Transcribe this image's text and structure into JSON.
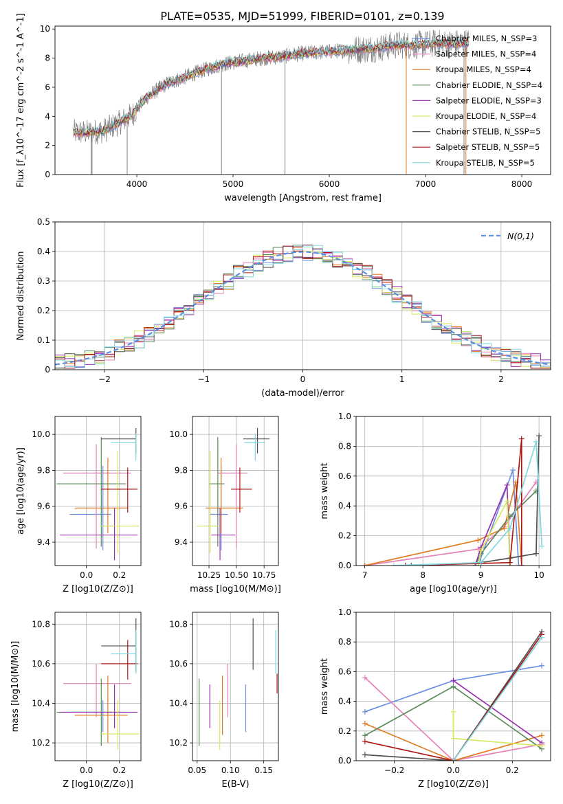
{
  "figure": {
    "title": "PLATE=0535, MJD=51999, FIBERID=0101, z=0.139"
  },
  "colors": {
    "Chabrier MILES": "#6a8fe0",
    "Salpeter MILES": "#e680b8",
    "Kroupa MILES": "#e07a20",
    "Chabrier ELODIE": "#5a8a5a",
    "Salpeter ELODIE": "#9a30b0",
    "Kroupa ELODIE": "#d8e860",
    "Chabrier STELIB": "#505050",
    "Salpeter STELIB": "#b01818",
    "Kroupa STELIB": "#80d8e0",
    "data": "#808080",
    "normal": "#5b8ee0"
  },
  "chart_data": [
    {
      "id": "spectrum",
      "type": "line",
      "xlabel": "wavelength [Angstrom, rest frame]",
      "ylabel": "Flux [f_λ10^-17 erg cm^-2 s^-1 A^-1]",
      "xlim": [
        3150,
        8300
      ],
      "ylim": [
        0,
        10.2
      ],
      "xticks": [
        4000,
        5000,
        6000,
        7000,
        8000
      ],
      "yticks": [
        0,
        2,
        4,
        6,
        8,
        10
      ],
      "continuum": {
        "x": [
          3340,
          3500,
          3650,
          3800,
          3950,
          4100,
          4300,
          4500,
          4700,
          4900,
          5100,
          5300,
          5500,
          5700,
          5900,
          6100,
          6300,
          6500,
          6700,
          6900,
          7100,
          7300,
          7500,
          7700,
          7900,
          8050
        ],
        "y": [
          2.9,
          2.9,
          3.0,
          3.5,
          4.1,
          5.3,
          6.2,
          6.7,
          7.2,
          7.6,
          7.8,
          8.0,
          8.1,
          8.3,
          8.4,
          8.5,
          8.6,
          8.7,
          8.9,
          8.9,
          9.0,
          9.0,
          9.1,
          9.2,
          9.3,
          9.3
        ]
      },
      "legend": [
        {
          "label": "Chabrier MILES, N_SSP=3",
          "model": "Chabrier MILES"
        },
        {
          "label": "Salpeter MILES, N_SSP=4",
          "model": "Salpeter MILES"
        },
        {
          "label": "Kroupa MILES, N_SSP=4",
          "model": "Kroupa MILES"
        },
        {
          "label": "Chabrier ELODIE, N_SSP=4",
          "model": "Chabrier ELODIE"
        },
        {
          "label": "Salpeter ELODIE, N_SSP=3",
          "model": "Salpeter ELODIE"
        },
        {
          "label": "Kroupa ELODIE, N_SSP=4",
          "model": "Kroupa ELODIE"
        },
        {
          "label": "Chabrier STELIB, N_SSP=5",
          "model": "Chabrier STELIB"
        },
        {
          "label": "Salpeter STELIB, N_SSP=5",
          "model": "Salpeter STELIB"
        },
        {
          "label": "Kroupa STELIB, N_SSP=5",
          "model": "Kroupa STELIB"
        }
      ]
    },
    {
      "id": "residuals",
      "type": "line",
      "xlabel": "(data-model)/error",
      "ylabel": "Normed distribution",
      "xlim": [
        -2.5,
        2.5
      ],
      "ylim": [
        0,
        0.5
      ],
      "xticks": [
        -2,
        -1,
        0,
        1,
        2
      ],
      "yticks": [
        0.0,
        0.1,
        0.2,
        0.3,
        0.4,
        0.5
      ],
      "legend": "N(0,1)",
      "bin_width": 0.1
    },
    {
      "id": "age_vs_Z",
      "type": "scatter",
      "xlabel": "Z [log10(Z/Z⊙)]",
      "ylabel": "age [log10(age/yr)]",
      "xlim": [
        -0.19,
        0.33
      ],
      "ylim": [
        9.27,
        10.1
      ],
      "xticks": [
        0.0,
        0.2
      ],
      "yticks": [
        9.4,
        9.6,
        9.8,
        10.0
      ],
      "points": [
        {
          "model": "Chabrier MILES",
          "x": 0.1,
          "xerr": [
            0.2,
            0.05
          ],
          "y": 9.555,
          "yerr": [
            0.2,
            0.27
          ]
        },
        {
          "model": "Salpeter MILES",
          "x": 0.06,
          "xerr": [
            0.2,
            0.21
          ],
          "y": 9.785,
          "yerr": [
            0.42,
            0.16
          ]
        },
        {
          "model": "Kroupa MILES",
          "x": 0.13,
          "xerr": [
            0.2,
            0.12
          ],
          "y": 9.59,
          "yerr": [
            0.14,
            0.28
          ]
        },
        {
          "model": "Chabrier ELODIE",
          "x": 0.09,
          "xerr": [
            0.27,
            0.15
          ],
          "y": 9.725,
          "yerr": [
            0.35,
            0.26
          ]
        },
        {
          "model": "Salpeter ELODIE",
          "x": 0.17,
          "xerr": [
            0.33,
            0.14
          ],
          "y": 9.44,
          "yerr": [
            0.14,
            0.15
          ]
        },
        {
          "model": "Kroupa ELODIE",
          "x": 0.19,
          "xerr": [
            0.1,
            0.13
          ],
          "y": 9.49,
          "yerr": [
            0.15,
            0.42
          ]
        },
        {
          "model": "Chabrier STELIB",
          "x": 0.3,
          "xerr": [
            0.21,
            0.0
          ],
          "y": 9.975,
          "yerr": [
            0.08,
            0.06
          ]
        },
        {
          "model": "Salpeter STELIB",
          "x": 0.25,
          "xerr": [
            0.16,
            0.06
          ],
          "y": 9.695,
          "yerr": [
            0.13,
            0.12
          ]
        },
        {
          "model": "Kroupa STELIB",
          "x": 0.3,
          "xerr": [
            0.15,
            0.0
          ],
          "y": 9.955,
          "yerr": [
            0.1,
            0.05
          ]
        }
      ]
    },
    {
      "id": "age_vs_mass",
      "type": "scatter",
      "xlabel": "mass [log10(M/M⊙)]",
      "ylabel": "",
      "xlim": [
        10.1,
        10.88
      ],
      "ylim": [
        9.27,
        10.1
      ],
      "xticks": [
        10.25,
        10.5,
        10.75
      ],
      "yticks": [
        9.4,
        9.6,
        9.8,
        10.0
      ],
      "points": [
        {
          "model": "Chabrier MILES",
          "x": 10.36,
          "xerr": [
            0.1,
            0.06
          ],
          "y": 9.555,
          "yerr": [
            0.2,
            0.27
          ]
        },
        {
          "model": "Salpeter MILES",
          "x": 10.5,
          "xerr": [
            0.17,
            0.1
          ],
          "y": 9.785,
          "yerr": [
            0.42,
            0.16
          ]
        },
        {
          "model": "Kroupa MILES",
          "x": 10.36,
          "xerr": [
            0.14,
            0.2
          ],
          "y": 9.59,
          "yerr": [
            0.14,
            0.28
          ]
        },
        {
          "model": "Chabrier ELODIE",
          "x": 10.33,
          "xerr": [
            0.08,
            0.06
          ],
          "y": 9.725,
          "yerr": [
            0.35,
            0.26
          ]
        },
        {
          "model": "Salpeter ELODIE",
          "x": 10.35,
          "xerr": [
            0.08,
            0.14
          ],
          "y": 9.44,
          "yerr": [
            0.14,
            0.15
          ]
        },
        {
          "model": "Kroupa ELODIE",
          "x": 10.26,
          "xerr": [
            0.12,
            0.08
          ],
          "y": 9.49,
          "yerr": [
            0.15,
            0.42
          ]
        },
        {
          "model": "Chabrier STELIB",
          "x": 10.69,
          "xerr": [
            0.13,
            0.11
          ],
          "y": 9.975,
          "yerr": [
            0.08,
            0.06
          ]
        },
        {
          "model": "Salpeter STELIB",
          "x": 10.53,
          "xerr": [
            0.08,
            0.11
          ],
          "y": 9.695,
          "yerr": [
            0.13,
            0.12
          ]
        },
        {
          "model": "Kroupa STELIB",
          "x": 10.67,
          "xerr": [
            0.1,
            0.09
          ],
          "y": 9.955,
          "yerr": [
            0.1,
            0.05
          ]
        }
      ]
    },
    {
      "id": "weight_vs_age",
      "type": "line",
      "xlabel": "age [log10(age/yr)]",
      "ylabel": "mass weight",
      "xlim": [
        6.85,
        10.2
      ],
      "ylim": [
        0,
        1.0
      ],
      "xticks": [
        7,
        8,
        9,
        10
      ],
      "yticks": [
        0.0,
        0.2,
        0.4,
        0.6,
        0.8,
        1.0
      ],
      "series": [
        {
          "model": "Chabrier MILES",
          "x": [
            8.95,
            9.55,
            9.65
          ],
          "y": [
            0.0,
            0.64,
            0.0
          ]
        },
        {
          "model": "Salpeter MILES",
          "x": [
            7.0,
            8.95,
            9.4,
            9.95
          ],
          "y": [
            0.0,
            0.11,
            0.26,
            0.56
          ]
        },
        {
          "model": "Kroupa MILES",
          "x": [
            7.0,
            8.95,
            9.4,
            9.6,
            9.7
          ],
          "y": [
            0.0,
            0.17,
            0.25,
            0.56,
            0.0
          ]
        },
        {
          "model": "Chabrier ELODIE",
          "x": [
            8.9,
            9.0,
            9.5,
            9.95
          ],
          "y": [
            0.0,
            0.08,
            0.33,
            0.5
          ]
        },
        {
          "model": "Salpeter ELODIE",
          "x": [
            8.9,
            9.0,
            9.45,
            9.5
          ],
          "y": [
            0.0,
            0.12,
            0.54,
            0.0
          ]
        },
        {
          "model": "Kroupa ELODIE",
          "x": [
            8.95,
            9.0,
            9.45,
            9.5
          ],
          "y": [
            0.0,
            0.1,
            0.43,
            0.0
          ]
        },
        {
          "model": "Chabrier STELIB",
          "x": [
            7.8,
            9.0,
            9.5,
            9.95,
            10.0
          ],
          "y": [
            0.0,
            0.02,
            0.05,
            0.08,
            0.87
          ]
        },
        {
          "model": "Salpeter STELIB",
          "x": [
            7.7,
            9.5,
            9.7,
            9.7
          ],
          "y": [
            0.0,
            0.02,
            0.85,
            0.0
          ]
        },
        {
          "model": "Kroupa STELIB",
          "x": [
            7.5,
            9.0,
            9.5,
            9.95,
            10.05
          ],
          "y": [
            0.0,
            0.02,
            0.25,
            0.83,
            0.13
          ]
        }
      ]
    },
    {
      "id": "mass_vs_Z",
      "type": "scatter",
      "xlabel": "Z [log10(Z/Z⊙)]",
      "ylabel": "mass [log10(M/M⊙)]",
      "xlim": [
        -0.19,
        0.33
      ],
      "ylim": [
        10.11,
        10.86
      ],
      "xticks": [
        0.0,
        0.2
      ],
      "yticks": [
        10.2,
        10.4,
        10.6,
        10.8
      ],
      "points": [
        {
          "model": "Chabrier MILES",
          "x": 0.1,
          "xerr": [
            0.2,
            0.05
          ],
          "y": 10.355,
          "yerr": [
            0.1,
            0.06
          ]
        },
        {
          "model": "Salpeter MILES",
          "x": 0.06,
          "xerr": [
            0.2,
            0.21
          ],
          "y": 10.5,
          "yerr": [
            0.17,
            0.1
          ]
        },
        {
          "model": "Kroupa MILES",
          "x": 0.13,
          "xerr": [
            0.2,
            0.12
          ],
          "y": 10.34,
          "yerr": [
            0.14,
            0.2
          ]
        },
        {
          "model": "Chabrier ELODIE",
          "x": 0.09,
          "xerr": [
            0.27,
            0.15
          ],
          "y": 10.355,
          "yerr": [
            0.17,
            0.17
          ]
        },
        {
          "model": "Salpeter ELODIE",
          "x": 0.17,
          "xerr": [
            0.33,
            0.14
          ],
          "y": 10.355,
          "yerr": [
            0.08,
            0.14
          ]
        },
        {
          "model": "Kroupa ELODIE",
          "x": 0.19,
          "xerr": [
            0.1,
            0.13
          ],
          "y": 10.245,
          "yerr": [
            0.08,
            0.17
          ]
        },
        {
          "model": "Chabrier STELIB",
          "x": 0.3,
          "xerr": [
            0.21,
            0.0
          ],
          "y": 10.69,
          "yerr": [
            0.13,
            0.14
          ]
        },
        {
          "model": "Salpeter STELIB",
          "x": 0.25,
          "xerr": [
            0.16,
            0.06
          ],
          "y": 10.6,
          "yerr": [
            0.08,
            0.12
          ]
        },
        {
          "model": "Kroupa STELIB",
          "x": 0.3,
          "xerr": [
            0.15,
            0.0
          ],
          "y": 10.65,
          "yerr": [
            0.1,
            0.12
          ]
        }
      ]
    },
    {
      "id": "mass_vs_EBV",
      "type": "scatter",
      "xlabel": "E(B-V)",
      "ylabel": "",
      "xlim": [
        0.043,
        0.172
      ],
      "ylim": [
        10.11,
        10.86
      ],
      "xticks": [
        0.05,
        0.1,
        0.15
      ],
      "yticks": [
        10.2,
        10.4,
        10.6,
        10.8
      ],
      "points": [
        {
          "model": "Chabrier ELODIE",
          "x": 0.053,
          "y": 10.355,
          "yerr": [
            0.17,
            0.17
          ]
        },
        {
          "model": "Salpeter ELODIE",
          "x": 0.069,
          "y": 10.355,
          "yerr": [
            0.08,
            0.14
          ]
        },
        {
          "model": "Kroupa ELODIE",
          "x": 0.084,
          "y": 10.245,
          "yerr": [
            0.08,
            0.17
          ]
        },
        {
          "model": "Kroupa MILES",
          "x": 0.088,
          "y": 10.34,
          "yerr": [
            0.1,
            0.2
          ]
        },
        {
          "model": "Salpeter MILES",
          "x": 0.096,
          "y": 10.5,
          "yerr": [
            0.17,
            0.1
          ]
        },
        {
          "model": "Chabrier MILES",
          "x": 0.123,
          "y": 10.355,
          "yerr": [
            0.1,
            0.14
          ]
        },
        {
          "model": "Chabrier STELIB",
          "x": 0.134,
          "y": 10.69,
          "yerr": [
            0.12,
            0.14
          ]
        },
        {
          "model": "Kroupa STELIB",
          "x": 0.168,
          "y": 10.65,
          "yerr": [
            0.1,
            0.12
          ]
        },
        {
          "model": "Salpeter STELIB",
          "x": 0.17,
          "y": 10.5,
          "yerr": [
            0.05,
            0.05
          ]
        }
      ]
    },
    {
      "id": "weight_vs_Z",
      "type": "line",
      "xlabel": "Z [log10(Z/Z⊙)]",
      "ylabel": "mass weight",
      "xlim": [
        -0.33,
        0.33
      ],
      "ylim": [
        0,
        1.0
      ],
      "xticks": [
        -0.2,
        0.0,
        0.2
      ],
      "yticks": [
        0.0,
        0.2,
        0.4,
        0.6,
        0.8,
        1.0
      ],
      "series": [
        {
          "model": "Chabrier MILES",
          "x": [
            -0.3,
            0.0,
            0.3
          ],
          "y": [
            0.33,
            0.54,
            0.64
          ]
        },
        {
          "model": "Salpeter MILES",
          "x": [
            -0.3,
            0.0,
            0.3
          ],
          "y": [
            0.56,
            0.0,
            0.11
          ]
        },
        {
          "model": "Kroupa MILES",
          "x": [
            -0.3,
            0.0,
            0.3
          ],
          "y": [
            0.25,
            0.0,
            0.17
          ]
        },
        {
          "model": "Chabrier ELODIE",
          "x": [
            -0.3,
            0.0,
            0.3
          ],
          "y": [
            0.17,
            0.5,
            0.08
          ]
        },
        {
          "model": "Salpeter ELODIE",
          "x": [
            0.0,
            0.3
          ],
          "y": [
            0.54,
            0.12
          ]
        },
        {
          "model": "Kroupa ELODIE",
          "x": [
            0.0,
            0.0,
            0.3
          ],
          "y": [
            0.33,
            0.15,
            0.1
          ]
        },
        {
          "model": "Chabrier STELIB",
          "x": [
            -0.3,
            0.0,
            0.3
          ],
          "y": [
            0.04,
            0.0,
            0.87
          ]
        },
        {
          "model": "Salpeter STELIB",
          "x": [
            -0.3,
            0.0,
            0.3
          ],
          "y": [
            0.13,
            0.0,
            0.85
          ]
        },
        {
          "model": "Kroupa STELIB",
          "x": [
            0.0,
            0.3
          ],
          "y": [
            0.0,
            0.83
          ]
        }
      ]
    }
  ]
}
